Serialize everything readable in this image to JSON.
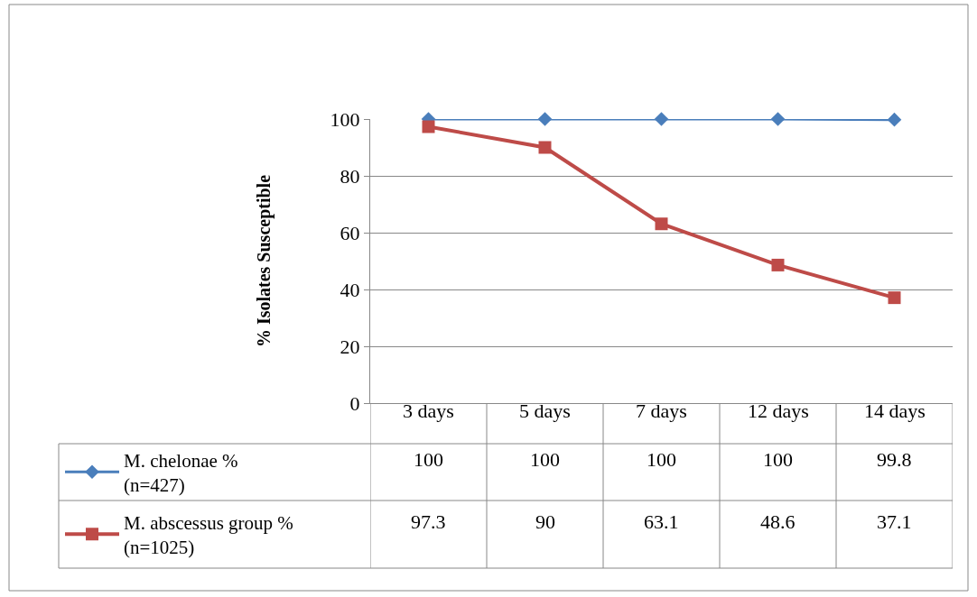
{
  "chart_data": {
    "type": "line",
    "ylabel": "% Isolates Susceptible",
    "categories": [
      "3 days",
      "5 days",
      "7 days",
      "12 days",
      "14 days"
    ],
    "series": [
      {
        "name": "M. chelonae %\n(n=427)",
        "color": "#4a7ebb",
        "marker": "diamond",
        "values": [
          100,
          100,
          100,
          100,
          99.8
        ]
      },
      {
        "name": "M. abscessus group %\n(n=1025)",
        "color": "#be4b48",
        "marker": "square",
        "values": [
          97.3,
          90,
          63.1,
          48.6,
          37.1
        ]
      }
    ],
    "ylim": [
      0,
      100
    ],
    "yticks": [
      0,
      20,
      40,
      60,
      80,
      100
    ],
    "grid": "y",
    "legend": "bottom left",
    "data_labels": true,
    "line_style": "solid"
  }
}
